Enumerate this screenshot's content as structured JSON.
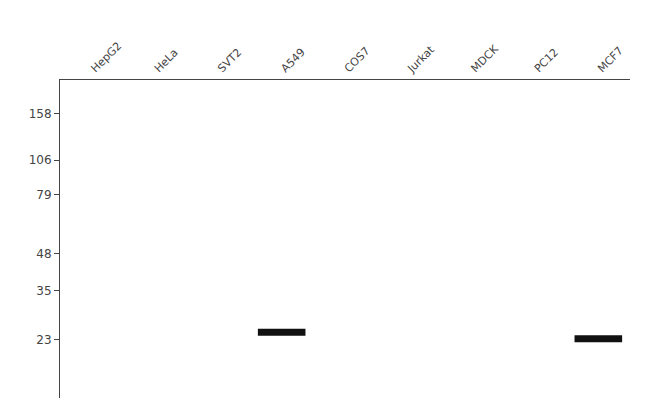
{
  "chart_data": {
    "type": "scatter",
    "categories": [
      "HepG2",
      "HeLa",
      "SVT2",
      "A549",
      "COS7",
      "Jurkat",
      "MDCK",
      "PC12",
      "MCF7"
    ],
    "values": [
      null,
      null,
      null,
      24.5,
      null,
      null,
      null,
      null,
      23.2
    ],
    "color": "#111111",
    "log": "y",
    "ylim": [
      14,
      210
    ],
    "yticks": [
      158,
      106,
      79,
      48,
      35,
      23
    ],
    "grid": false
  }
}
